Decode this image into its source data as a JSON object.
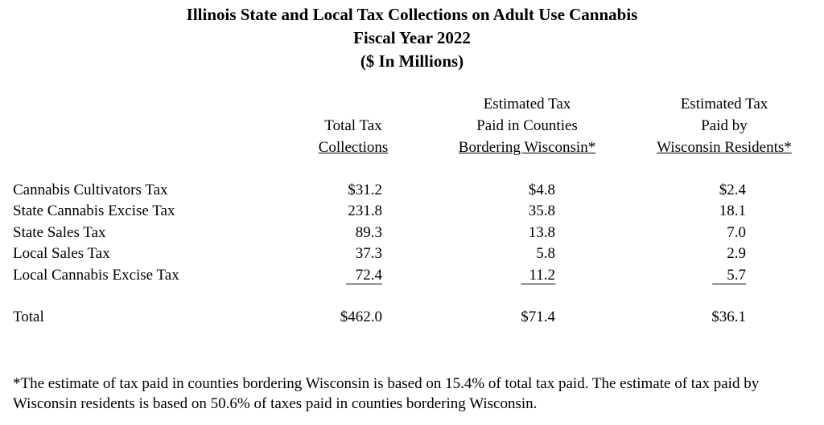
{
  "title": [
    "Illinois State and Local Tax Collections on Adult Use Cannabis",
    "Fiscal Year 2022",
    "($ In Millions)"
  ],
  "table": {
    "columns": [
      [
        "Total Tax",
        "Collections"
      ],
      [
        "Estimated Tax",
        "Paid in Counties",
        "Bordering Wisconsin*"
      ],
      [
        "Estimated Tax",
        "Paid by",
        "Wisconsin Residents*"
      ]
    ],
    "rows": [
      [
        "Cannabis Cultivators Tax",
        "$31.2",
        "$4.8",
        "$2.4"
      ],
      [
        "State Cannabis Excise Tax",
        "231.8",
        "35.8",
        "18.1"
      ],
      [
        "State Sales Tax",
        "89.3",
        "13.8",
        "7.0"
      ],
      [
        "Local Sales Tax",
        "37.3",
        "5.8",
        "2.9"
      ],
      [
        "Local Cannabis Excise Tax",
        "72.4",
        "11.2",
        "5.7"
      ]
    ],
    "total": [
      "Total",
      "$462.0",
      "$71.4",
      "$36.1"
    ]
  },
  "footnote": "*The estimate of tax paid in counties bordering Wisconsin is based on 15.4% of total tax paid. The estimate of tax paid by Wisconsin residents is based on 50.6% of taxes paid in counties bordering Wisconsin."
}
